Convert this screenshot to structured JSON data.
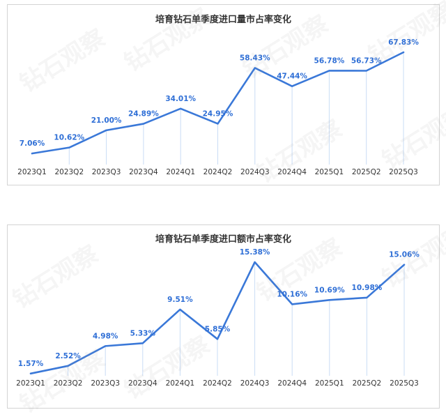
{
  "colors": {
    "line": "#3a78d8",
    "label": "#2f6fd6",
    "tick": "#333333",
    "drop": "#c9dcf5"
  },
  "watermark": {
    "text": "钻石观察",
    "icon": "watermark-text"
  },
  "chart_data": [
    {
      "type": "line",
      "title": "培育钻石单季度进口量市占率变化",
      "categories": [
        "2023Q1",
        "2023Q2",
        "2023Q3",
        "2023Q4",
        "2024Q1",
        "2024Q2",
        "2024Q3",
        "2024Q4",
        "2025Q1",
        "2025Q2",
        "2025Q3"
      ],
      "values": [
        7.06,
        10.62,
        21.0,
        24.89,
        34.01,
        24.95,
        58.43,
        47.44,
        56.78,
        56.73,
        67.83
      ],
      "labels": [
        "7.06%",
        "10.62%",
        "21.00%",
        "24.89%",
        "34.01%",
        "24.95%",
        "58.43%",
        "47.44%",
        "56.78%",
        "56.73%",
        "67.83%"
      ],
      "unit": "%",
      "grid": false,
      "ylim": [
        0,
        80
      ]
    },
    {
      "type": "line",
      "title": "培育钻石单季度进口额市占率变化",
      "categories": [
        "2023Q1",
        "2023Q2",
        "2023Q3",
        "2023Q4",
        "2024Q1",
        "2024Q2",
        "2024Q3",
        "2024Q4",
        "2025Q1",
        "2025Q2",
        "2025Q3"
      ],
      "values": [
        1.57,
        2.52,
        4.98,
        5.33,
        9.51,
        5.85,
        15.38,
        10.16,
        10.69,
        10.98,
        15.06
      ],
      "labels": [
        "1.57%",
        "2.52%",
        "4.98%",
        "5.33%",
        "9.51%",
        "5.85%",
        "15.38%",
        "10.16%",
        "10.69%",
        "10.98%",
        "15.06%"
      ],
      "unit": "%",
      "grid": false,
      "ylim": [
        0,
        18
      ]
    }
  ]
}
